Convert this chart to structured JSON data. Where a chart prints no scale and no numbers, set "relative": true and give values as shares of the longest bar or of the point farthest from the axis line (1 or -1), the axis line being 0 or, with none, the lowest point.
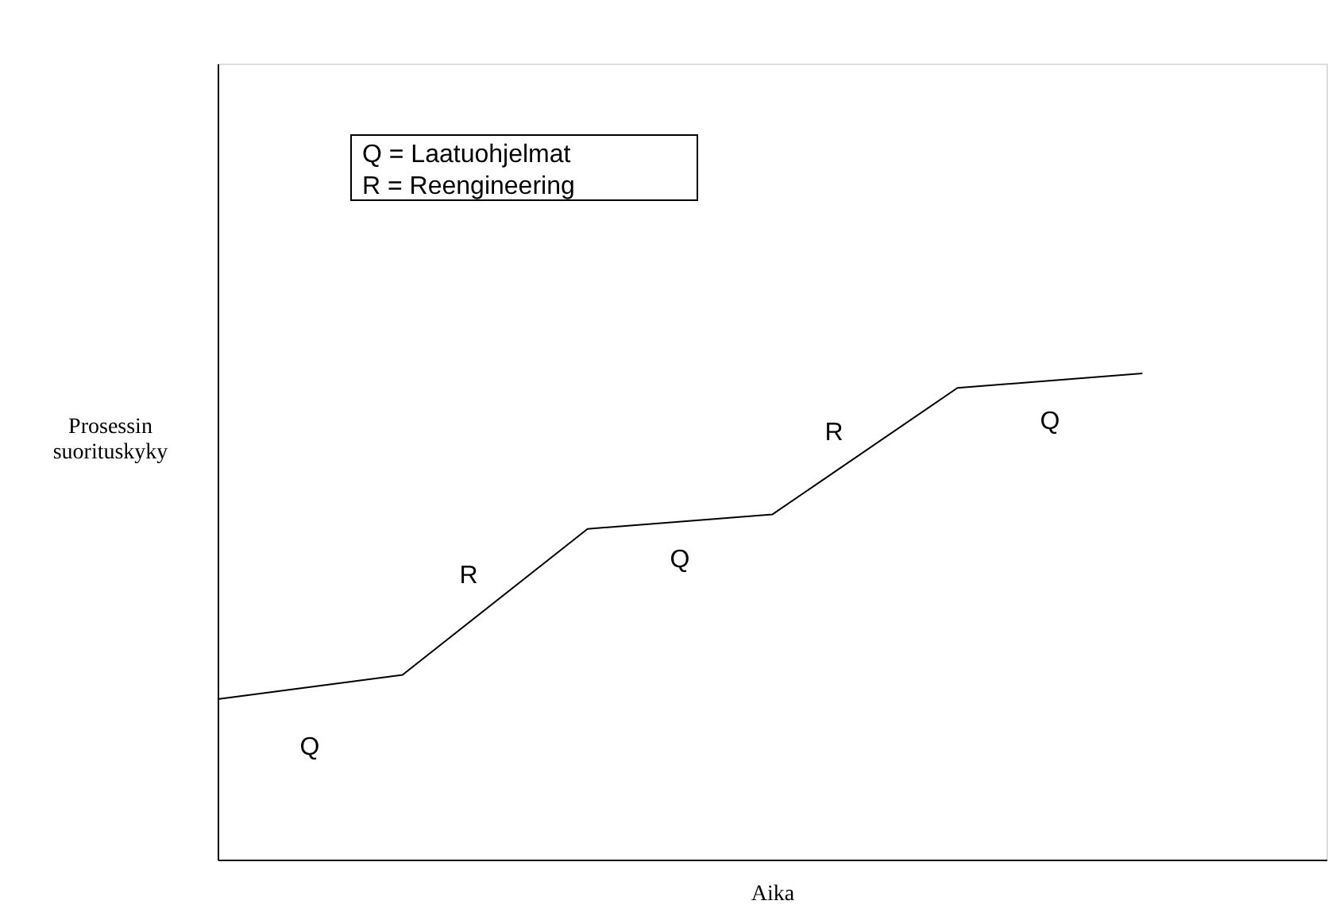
{
  "chart_data": {
    "type": "line",
    "relative": true,
    "xlabel": "Aika",
    "ylabel": "Prosessin\nsuorituskyky",
    "categories": [
      null,
      null,
      null,
      null,
      null,
      null
    ],
    "series": [
      {
        "color": "#000000",
        "values": [
          0.33,
          0.38,
          0.68,
          0.71,
          0.97,
          1
        ]
      }
    ],
    "annotations": [
      "Q = Laatuohjelmat",
      "R = Reengineering",
      "Q",
      "R",
      "Q",
      "R",
      "Q"
    ]
  }
}
